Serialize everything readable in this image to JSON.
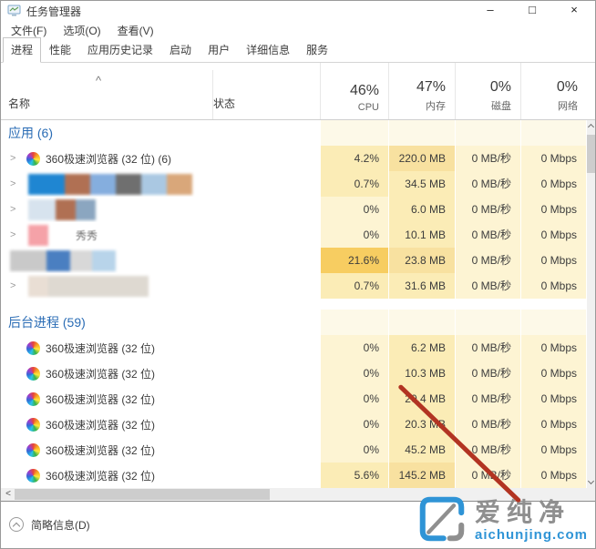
{
  "window": {
    "title": "任务管理器",
    "controls": [
      {
        "id": "minimize",
        "glyph": "–"
      },
      {
        "id": "maximize",
        "glyph": "□"
      },
      {
        "id": "close",
        "glyph": "×"
      }
    ]
  },
  "menu": {
    "items": [
      {
        "id": "file",
        "label": "文件(F)"
      },
      {
        "id": "options",
        "label": "选项(O)"
      },
      {
        "id": "view",
        "label": "查看(V)"
      }
    ]
  },
  "tabs": {
    "selected": 0,
    "items": [
      {
        "id": "processes",
        "label": "进程"
      },
      {
        "id": "performance",
        "label": "性能"
      },
      {
        "id": "app-history",
        "label": "应用历史记录"
      },
      {
        "id": "startup",
        "label": "启动"
      },
      {
        "id": "users",
        "label": "用户"
      },
      {
        "id": "details",
        "label": "详细信息"
      },
      {
        "id": "services",
        "label": "服务"
      }
    ]
  },
  "header": {
    "sort_indicator": "^",
    "name_label": "名称",
    "status_label": "状态",
    "cols": [
      {
        "id": "cpu",
        "pct": "46%",
        "label": "CPU"
      },
      {
        "id": "memory",
        "pct": "47%",
        "label": "内存"
      },
      {
        "id": "disk",
        "pct": "0%",
        "label": "磁盘"
      },
      {
        "id": "network",
        "pct": "0%",
        "label": "网络"
      }
    ]
  },
  "groups": [
    {
      "label": "应用 (6)",
      "rows": [
        {
          "name": "360极速浏览器 (32 位) (6)",
          "icon": "360",
          "expander": true,
          "values": [
            "4.2%",
            "220.0 MB",
            "0 MB/秒",
            "0 Mbps"
          ],
          "heat": [
            1,
            2,
            0,
            0
          ]
        },
        {
          "censored": true,
          "expander": true,
          "mosaic": [
            [
              "#1f86d2",
              40
            ],
            [
              "#b07053",
              28
            ],
            [
              "#85aede",
              28
            ],
            [
              "#6f6f6f",
              28
            ],
            [
              "#aac8e2",
              28
            ],
            [
              "#d9a77a",
              28
            ]
          ],
          "values": [
            "0.7%",
            "34.5 MB",
            "0 MB/秒",
            "0 Mbps"
          ],
          "heat": [
            1,
            1,
            0,
            0
          ]
        },
        {
          "censored": true,
          "expander": true,
          "mosaic": [
            [
              "#d7e3ee",
              30
            ],
            [
              "#b07053",
              22
            ],
            [
              "#8ba6c0",
              22
            ]
          ],
          "values": [
            "0%",
            "6.0 MB",
            "0 MB/秒",
            "0 Mbps"
          ],
          "heat": [
            0,
            1,
            0,
            0
          ]
        },
        {
          "censored": true,
          "expander": true,
          "mosaic": [
            [
              "#f5a2a8",
              22
            ]
          ],
          "fragment": "秀秀",
          "values": [
            "0%",
            "10.1 MB",
            "0 MB/秒",
            "0 Mbps"
          ],
          "heat": [
            0,
            1,
            0,
            0
          ]
        },
        {
          "censored": true,
          "flush": true,
          "mosaic": [
            [
              "#c9c9c9",
              40
            ],
            [
              "#4a7fc1",
              26
            ],
            [
              "#d8d8d8",
              24
            ],
            [
              "#b8d4ea",
              26
            ]
          ],
          "values": [
            "21.6%",
            "23.8 MB",
            "0 MB/秒",
            "0 Mbps"
          ],
          "heat": [
            3,
            2,
            0,
            0
          ]
        },
        {
          "censored": true,
          "expander": true,
          "mosaic": [
            [
              "#e9ded4",
              22
            ],
            [
              "#ded9d1",
              110
            ]
          ],
          "values": [
            "0.7%",
            "31.6 MB",
            "0 MB/秒",
            "0 Mbps"
          ],
          "heat": [
            1,
            1,
            0,
            0
          ]
        }
      ]
    },
    {
      "label": "后台进程 (59)",
      "rows": [
        {
          "name": "360极速浏览器 (32 位)",
          "icon": "360",
          "values": [
            "0%",
            "6.2 MB",
            "0 MB/秒",
            "0 Mbps"
          ],
          "heat": [
            0,
            1,
            0,
            0
          ]
        },
        {
          "name": "360极速浏览器 (32 位)",
          "icon": "360",
          "values": [
            "0%",
            "10.3 MB",
            "0 MB/秒",
            "0 Mbps"
          ],
          "heat": [
            0,
            1,
            0,
            0
          ]
        },
        {
          "name": "360极速浏览器 (32 位)",
          "icon": "360",
          "values": [
            "0%",
            "20.4 MB",
            "0 MB/秒",
            "0 Mbps"
          ],
          "heat": [
            0,
            1,
            0,
            0
          ]
        },
        {
          "name": "360极速浏览器 (32 位)",
          "icon": "360",
          "values": [
            "0%",
            "20.3 MB",
            "0 MB/秒",
            "0 Mbps"
          ],
          "heat": [
            0,
            1,
            0,
            0
          ]
        },
        {
          "name": "360极速浏览器 (32 位)",
          "icon": "360",
          "values": [
            "0%",
            "45.2 MB",
            "0 MB/秒",
            "0 Mbps"
          ],
          "heat": [
            0,
            1,
            0,
            0
          ]
        },
        {
          "name": "360极速浏览器 (32 位)",
          "icon": "360",
          "values": [
            "5.6%",
            "145.2 MB",
            "0 MB/秒",
            "0 Mbps"
          ],
          "heat": [
            1,
            2,
            0,
            0
          ]
        }
      ]
    }
  ],
  "statusbar": {
    "label": "简略信息(D)"
  },
  "watermark": {
    "title": "爱纯净",
    "domain": "aichunjing.com"
  },
  "colors": {
    "heat": [
      "#fdf4d3",
      "#fbecb6",
      "#f8e1a0",
      "#f7cd61"
    ],
    "group_cell": "#fdf9e8",
    "group_label": "#2a6cb5",
    "annotation": "#b23422",
    "watermark_blue": "#2f94d6",
    "watermark_gray": "#8f8f8f"
  }
}
